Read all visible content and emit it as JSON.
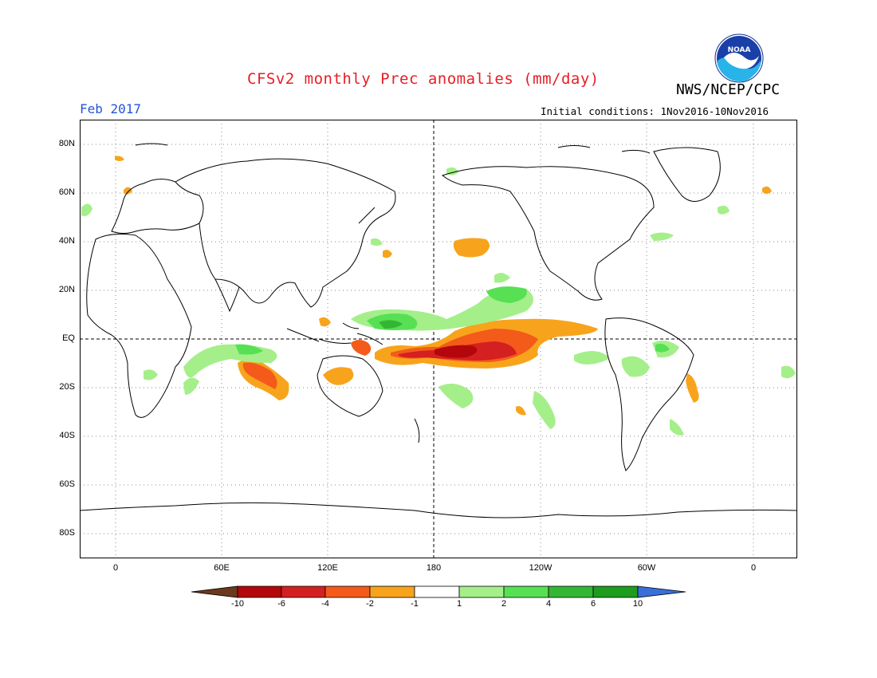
{
  "header": {
    "title": "CFSv2 monthly Prec anomalies (mm/day)",
    "agency": "NWS/NCEP/CPC",
    "month": "Feb 2017",
    "initial_conditions": "Initial conditions: 1Nov2016-10Nov2016",
    "logo_text": "NOAA"
  },
  "axes": {
    "lat_labels": [
      "80N",
      "60N",
      "40N",
      "20N",
      "EQ",
      "20S",
      "40S",
      "60S",
      "80S"
    ],
    "lon_labels": [
      "0",
      "60E",
      "120E",
      "180",
      "120W",
      "60W",
      "0"
    ]
  },
  "colorbar": {
    "labels": [
      "-10",
      "-6",
      "-4",
      "-2",
      "-1",
      "1",
      "2",
      "4",
      "6",
      "10"
    ],
    "colors": [
      "#6b3a1e",
      "#b4070b",
      "#d42020",
      "#f45a1a",
      "#f7a41c",
      "#ffffff",
      "#a4ef8a",
      "#57e054",
      "#33b733",
      "#1e9c1e",
      "#3a6fd8"
    ]
  },
  "colors": {
    "title": "#e41f26",
    "month": "#2453d8",
    "positive_light": "#a4ef8a",
    "positive_mid": "#57e054",
    "positive_dark": "#33b733",
    "negative_light": "#f7a41c",
    "negative_mid": "#f45a1a",
    "negative_dark": "#d42020",
    "negative_darkest": "#b4070b"
  }
}
